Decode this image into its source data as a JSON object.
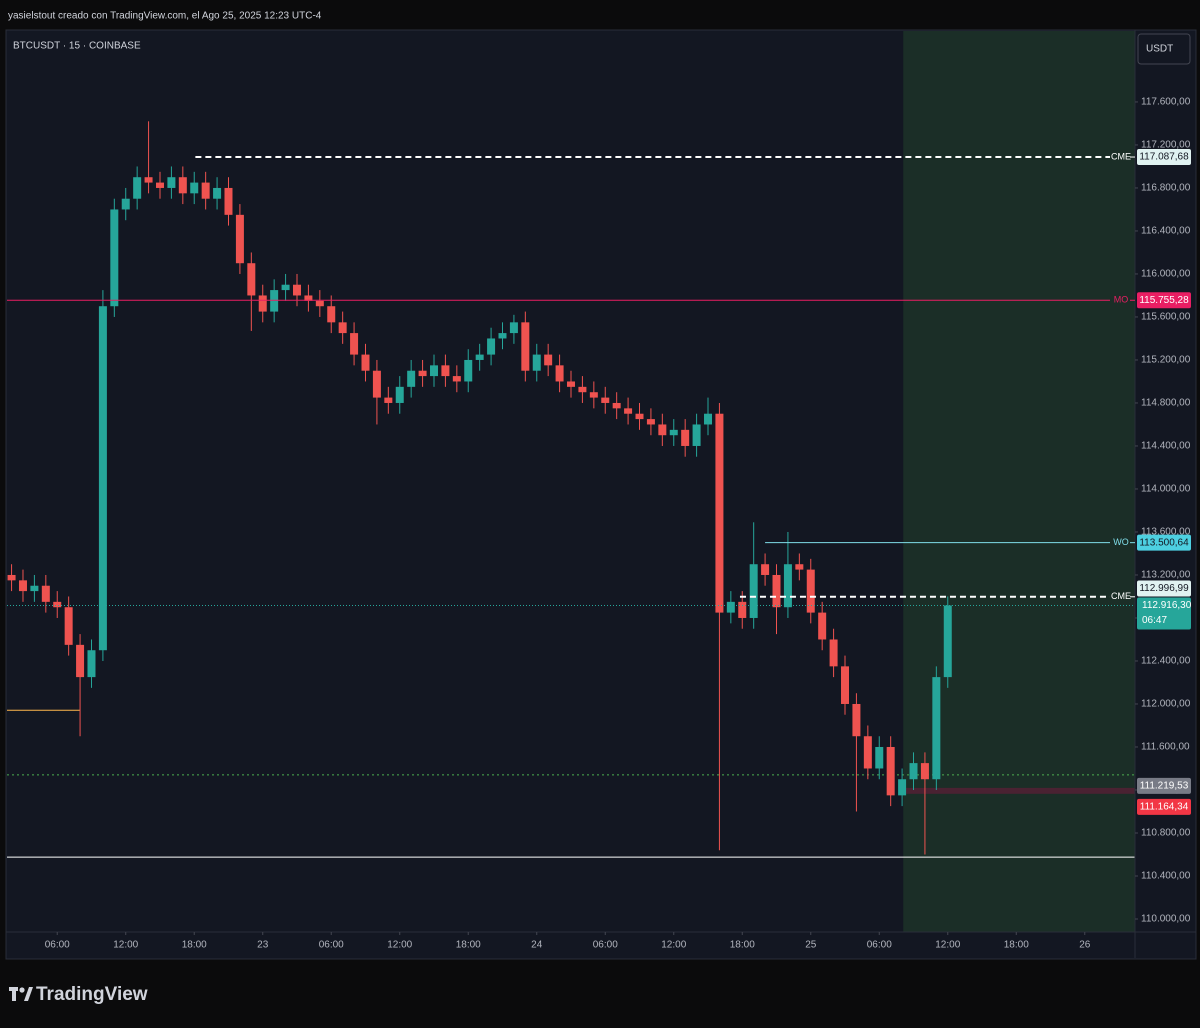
{
  "header": {
    "caption": "yasielstout creado con TradingView.com, el Ago 25, 2025 12:23 UTC-4",
    "logo": "TradingView"
  },
  "chart_data": {
    "type": "candlestick",
    "title": "BTCUSDT · 15 · COINBASE",
    "currency": "USDT",
    "up_color": "#26a69a",
    "down_color": "#ef5350",
    "grid": false,
    "x": [
      2,
      3,
      4,
      5,
      6,
      7,
      8,
      9,
      10,
      11,
      12,
      13,
      14,
      15,
      16,
      17,
      18,
      19,
      20,
      21,
      22,
      23,
      24,
      25,
      26,
      27,
      28,
      29,
      30,
      31,
      32,
      33,
      34,
      35,
      36,
      37,
      38,
      39,
      40,
      41,
      42,
      43,
      44,
      45,
      46,
      47,
      48,
      49,
      50,
      51,
      52,
      53,
      54,
      55,
      56,
      57,
      58,
      59,
      60,
      61,
      62,
      63,
      64,
      65,
      66,
      67,
      68,
      69,
      70,
      71,
      72,
      73,
      74,
      75,
      76,
      77,
      78,
      79,
      80,
      81,
      82,
      83,
      84
    ],
    "open": [
      113200,
      113150,
      113050,
      113100,
      112950,
      112900,
      112550,
      112250,
      112500,
      115700,
      116600,
      116700,
      116900,
      116850,
      116800,
      116900,
      116750,
      116850,
      116700,
      116800,
      116550,
      116100,
      115800,
      115650,
      115850,
      115900,
      115800,
      115750,
      115700,
      115550,
      115450,
      115250,
      115100,
      114850,
      114800,
      114950,
      115100,
      115050,
      115150,
      115050,
      115000,
      115200,
      115250,
      115400,
      115450,
      115550,
      115100,
      115250,
      115150,
      115000,
      114950,
      114900,
      114850,
      114800,
      114750,
      114700,
      114650,
      114600,
      114500,
      114550,
      114400,
      114600,
      114700,
      112850,
      112950,
      112800,
      113300,
      113200,
      112900,
      113300,
      113250,
      112850,
      112600,
      112350,
      112000,
      111700,
      111400,
      111600,
      111150,
      111300,
      111450,
      111300,
      112250
    ],
    "high": [
      113300,
      113250,
      113200,
      113200,
      113050,
      113000,
      112650,
      112600,
      115850,
      116700,
      116800,
      117000,
      117420,
      116950,
      117000,
      117000,
      116950,
      116950,
      116900,
      116900,
      116650,
      116200,
      115900,
      115950,
      116000,
      116000,
      115900,
      115850,
      115800,
      115650,
      115550,
      115350,
      115200,
      114950,
      115050,
      115200,
      115200,
      115250,
      115250,
      115150,
      115300,
      115350,
      115500,
      115550,
      115620,
      115650,
      115350,
      115350,
      115250,
      115100,
      115050,
      115000,
      114950,
      114900,
      114850,
      114800,
      114750,
      114700,
      114650,
      114650,
      114700,
      114850,
      114800,
      113050,
      113050,
      113690,
      113400,
      113300,
      113600,
      113400,
      113350,
      112950,
      112700,
      112450,
      112100,
      111800,
      111700,
      111700,
      111400,
      111550,
      111550,
      112350,
      113000
    ],
    "low": [
      113050,
      112950,
      112950,
      112850,
      112800,
      112450,
      111700,
      112150,
      112400,
      115600,
      116500,
      116600,
      116750,
      116700,
      116700,
      116650,
      116650,
      116600,
      116600,
      116450,
      116000,
      115470,
      115550,
      115550,
      115750,
      115700,
      115650,
      115600,
      115450,
      115350,
      115150,
      115000,
      114600,
      114700,
      114700,
      114850,
      114950,
      114950,
      114950,
      114900,
      114900,
      115100,
      115150,
      115300,
      115350,
      115000,
      115000,
      115050,
      114900,
      114850,
      114800,
      114750,
      114700,
      114650,
      114600,
      114550,
      114500,
      114400,
      114400,
      114300,
      114300,
      114500,
      110640,
      112750,
      112700,
      112700,
      113100,
      112650,
      112800,
      113150,
      112750,
      112500,
      112250,
      111900,
      111000,
      111300,
      111300,
      111050,
      111050,
      111200,
      110600,
      111200,
      112150
    ],
    "close": [
      113150,
      113050,
      113100,
      112950,
      112900,
      112550,
      112250,
      112500,
      115700,
      116600,
      116700,
      116900,
      116850,
      116800,
      116900,
      116750,
      116850,
      116700,
      116800,
      116550,
      116100,
      115800,
      115650,
      115850,
      115900,
      115800,
      115750,
      115700,
      115550,
      115450,
      115250,
      115100,
      114850,
      114800,
      114950,
      115100,
      115050,
      115150,
      115050,
      115000,
      115200,
      115250,
      115400,
      115450,
      115550,
      115100,
      115250,
      115150,
      115000,
      114950,
      114900,
      114850,
      114800,
      114750,
      114700,
      114650,
      114600,
      114500,
      114550,
      114400,
      114600,
      114700,
      112850,
      112950,
      112800,
      113300,
      113200,
      112900,
      113300,
      113250,
      112850,
      112600,
      112350,
      112000,
      111700,
      111400,
      111600,
      111150,
      111300,
      111450,
      111300,
      112250,
      112916.3
    ],
    "xlim": [
      1.6,
      100.4
    ],
    "xticks": [
      {
        "value": 6,
        "label": "06:00"
      },
      {
        "value": 12,
        "label": "12:00"
      },
      {
        "value": 18,
        "label": "18:00"
      },
      {
        "value": 24,
        "label": "23"
      },
      {
        "value": 30,
        "label": "06:00"
      },
      {
        "value": 36,
        "label": "12:00"
      },
      {
        "value": 42,
        "label": "18:00"
      },
      {
        "value": 48,
        "label": "24"
      },
      {
        "value": 54,
        "label": "06:00"
      },
      {
        "value": 60,
        "label": "12:00"
      },
      {
        "value": 66,
        "label": "18:00"
      },
      {
        "value": 72,
        "label": "25"
      },
      {
        "value": 78,
        "label": "06:00"
      },
      {
        "value": 84,
        "label": "12:00"
      },
      {
        "value": 90,
        "label": "18:00"
      },
      {
        "value": 96,
        "label": "26"
      }
    ],
    "ylim": [
      109879,
      118260
    ],
    "yticks": [
      {
        "value": 110000,
        "label": "110.000,00"
      },
      {
        "value": 110400,
        "label": "110.400,00"
      },
      {
        "value": 110800,
        "label": "110.800,00"
      },
      {
        "value": 111200,
        "label": "111.200,00"
      },
      {
        "value": 111600,
        "label": "111.600,00"
      },
      {
        "value": 112000,
        "label": "112.000,00"
      },
      {
        "value": 112400,
        "label": "112.400,00"
      },
      {
        "value": 112800,
        "label": "112.800,00"
      },
      {
        "value": 113200,
        "label": "113.200,00"
      },
      {
        "value": 113600,
        "label": "113.600,00"
      },
      {
        "value": 114000,
        "label": "114.000,00"
      },
      {
        "value": 114400,
        "label": "114.400,00"
      },
      {
        "value": 114800,
        "label": "114.800,00"
      },
      {
        "value": 115200,
        "label": "115.200,00"
      },
      {
        "value": 115600,
        "label": "115.600,00"
      },
      {
        "value": 116000,
        "label": "116.000,00"
      },
      {
        "value": 116400,
        "label": "116.400,00"
      },
      {
        "value": 116800,
        "label": "116.800,00"
      },
      {
        "value": 117200,
        "label": "117.200,00"
      },
      {
        "value": 117600,
        "label": "117.600,00"
      }
    ],
    "zone": {
      "from": 80.1,
      "color": "#1b2e27"
    },
    "lines": [
      {
        "value": 111340,
        "color": "#4caf50",
        "style": "dotted"
      },
      {
        "value": 110576,
        "color": "#ffffff",
        "style": "solid"
      },
      {
        "value": 111942,
        "color": "#ffb74d",
        "style": "solid",
        "to": 8.0
      }
    ],
    "levels": [
      {
        "name": "CME",
        "value": 117087.68,
        "label": "117.087,68",
        "color": "#ffffff",
        "tag_color": "#e0f2f1",
        "style": "dashed",
        "from": 18.1
      },
      {
        "name": "MO",
        "value": 115755.28,
        "label": "115.755,28",
        "color": "#e91e63",
        "tag_color": "#e91e63",
        "style": "solid"
      },
      {
        "name": "WO",
        "value": 113500.64,
        "label": "113.500,64",
        "color": "#80deea",
        "tag_color": "#4dd0e1",
        "style": "solid",
        "from": 68
      },
      {
        "name": "CME",
        "value": 112996.99,
        "label": "112.996,99",
        "color": "#ffffff",
        "tag_color": "#e0f2f1",
        "style": "dashed",
        "from": 65.8
      }
    ],
    "band": {
      "from": 80.3,
      "top": 111219.53,
      "top_label": "111.219,53",
      "top_color": "#787b86",
      "bottom": 111164.34,
      "bottom_label": "111.164,34",
      "bottom_color": "#f23645",
      "fill": "#4a2232"
    },
    "last_price": {
      "value": 112916.3,
      "label": "112.916,30",
      "countdown": "06:47",
      "color": "#26a69a"
    }
  }
}
